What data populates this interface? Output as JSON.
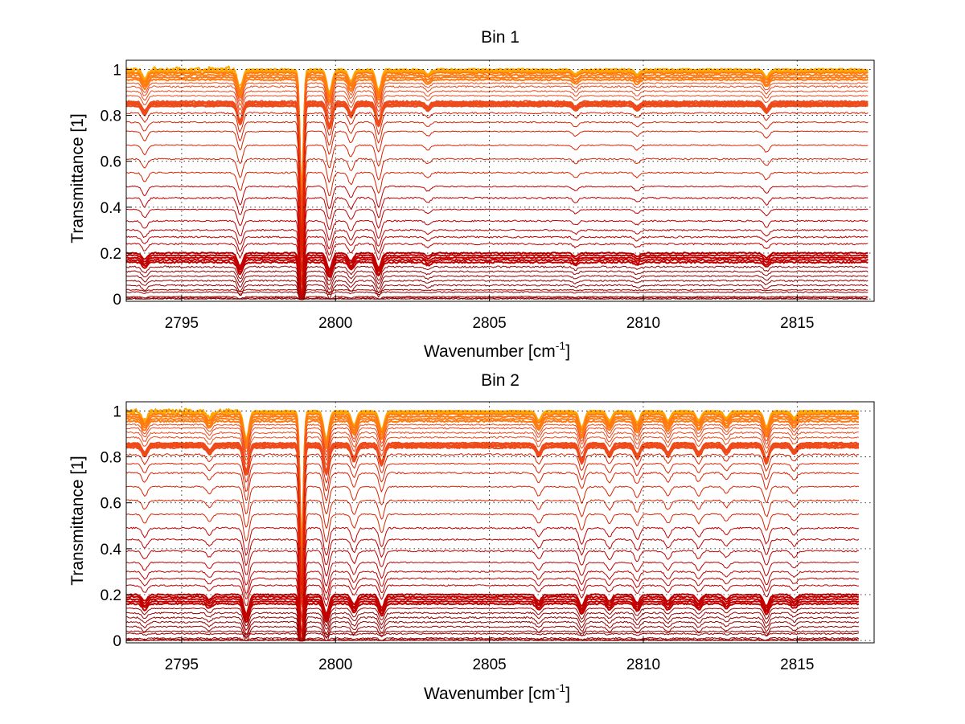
{
  "chart_data": [
    {
      "type": "line",
      "title": "Bin 1",
      "xlabel": "Wavenumber [cm",
      "xlabel_sup": "-1",
      "xlabel_end": "]",
      "ylabel": "Transmittance [1]",
      "xlim": [
        2793.2,
        2817.5
      ],
      "ylim": [
        -0.01,
        1.04
      ],
      "xticks": [
        2795,
        2800,
        2805,
        2810,
        2815
      ],
      "yticks": [
        0,
        0.2,
        0.4,
        0.6,
        0.8,
        1
      ],
      "ytick_labels": [
        "0",
        "0.2",
        "0.4",
        "0.6",
        "0.8",
        "1"
      ],
      "grid": true,
      "x_end": 2817.3,
      "baselines": [
        1.0,
        0.995,
        0.99,
        0.985,
        0.975,
        0.965,
        0.955,
        0.94,
        0.925,
        0.905,
        0.885,
        0.86,
        0.855,
        0.85,
        0.845,
        0.84,
        0.81,
        0.77,
        0.73,
        0.67,
        0.61,
        0.55,
        0.49,
        0.44,
        0.39,
        0.34,
        0.3,
        0.27,
        0.24,
        0.2,
        0.19,
        0.18,
        0.17,
        0.16,
        0.14,
        0.12,
        0.1,
        0.08,
        0.06,
        0.04,
        0.03,
        0.01,
        0.005,
        0.0
      ],
      "absorption_lines": [
        {
          "x": 2793.8,
          "depth": 0.04
        },
        {
          "x": 2796.9,
          "depth": 0.08
        },
        {
          "x": 2798.9,
          "depth": 0.55
        },
        {
          "x": 2799.8,
          "depth": 0.1
        },
        {
          "x": 2800.5,
          "depth": 0.05
        },
        {
          "x": 2801.4,
          "depth": 0.09
        },
        {
          "x": 2803.0,
          "depth": 0.02
        },
        {
          "x": 2807.8,
          "depth": 0.02
        },
        {
          "x": 2809.8,
          "depth": 0.02
        },
        {
          "x": 2814.0,
          "depth": 0.03
        }
      ]
    },
    {
      "type": "line",
      "title": "Bin 2",
      "xlabel": "Wavenumber [cm",
      "xlabel_sup": "-1",
      "xlabel_end": "]",
      "ylabel": "Transmittance [1]",
      "xlim": [
        2793.2,
        2817.5
      ],
      "ylim": [
        -0.01,
        1.04
      ],
      "xticks": [
        2795,
        2800,
        2805,
        2810,
        2815
      ],
      "yticks": [
        0,
        0.2,
        0.4,
        0.6,
        0.8,
        1
      ],
      "ytick_labels": [
        "0",
        "0.2",
        "0.4",
        "0.6",
        "0.8",
        "1"
      ],
      "grid": true,
      "x_end": 2817.0,
      "baselines": [
        1.0,
        0.995,
        0.99,
        0.985,
        0.975,
        0.965,
        0.955,
        0.94,
        0.925,
        0.905,
        0.885,
        0.86,
        0.855,
        0.85,
        0.845,
        0.84,
        0.81,
        0.77,
        0.73,
        0.67,
        0.61,
        0.55,
        0.49,
        0.44,
        0.39,
        0.34,
        0.3,
        0.27,
        0.24,
        0.2,
        0.19,
        0.18,
        0.17,
        0.16,
        0.14,
        0.12,
        0.1,
        0.08,
        0.06,
        0.04,
        0.03,
        0.01,
        0.005,
        0.0
      ],
      "absorption_lines": [
        {
          "x": 2793.8,
          "depth": 0.04
        },
        {
          "x": 2795.9,
          "depth": 0.03
        },
        {
          "x": 2797.1,
          "depth": 0.12
        },
        {
          "x": 2798.9,
          "depth": 0.6
        },
        {
          "x": 2799.7,
          "depth": 0.12
        },
        {
          "x": 2800.6,
          "depth": 0.06
        },
        {
          "x": 2801.5,
          "depth": 0.08
        },
        {
          "x": 2806.6,
          "depth": 0.04
        },
        {
          "x": 2808.0,
          "depth": 0.07
        },
        {
          "x": 2808.9,
          "depth": 0.04
        },
        {
          "x": 2809.8,
          "depth": 0.05
        },
        {
          "x": 2810.8,
          "depth": 0.04
        },
        {
          "x": 2811.8,
          "depth": 0.04
        },
        {
          "x": 2812.7,
          "depth": 0.03
        },
        {
          "x": 2814.0,
          "depth": 0.07
        },
        {
          "x": 2814.9,
          "depth": 0.03
        }
      ]
    }
  ]
}
